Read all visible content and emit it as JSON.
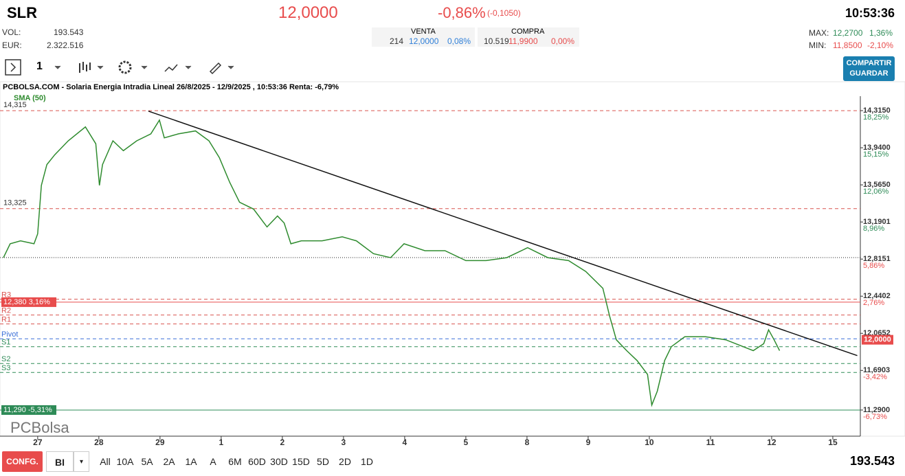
{
  "header": {
    "symbol": "SLR",
    "price": "12,0000",
    "change_pct": "-0,86%",
    "change_abs": "(-0,1050)",
    "time": "10:53:36",
    "vol_label": "VOL:",
    "vol_value": "193.543",
    "eur_label": "EUR:",
    "eur_value": "2.322.516",
    "sell": {
      "title": "VENTA",
      "qty": "214",
      "price": "12,0000",
      "pct": "0,08%"
    },
    "buy": {
      "title": "COMPRA",
      "qty": "10.519",
      "price": "11,9900",
      "pct": "0,00%"
    },
    "max_label": "MAX:",
    "max_value": "12,2700",
    "max_pct": "1,36%",
    "min_label": "MIN:",
    "min_value": "11,8500",
    "min_pct": "-2,10%"
  },
  "toolbar": {
    "interval": "1",
    "share": "COMPARTIR",
    "save": "GUARDAR"
  },
  "chart_data": {
    "type": "line",
    "title": "PCBOLSA.COM - Solaria Energia Intradia Lineal 26/8/2025 - 12/9/2025 , 10:53:36 Renta: -6,79%",
    "watermark": "PCBolsa",
    "xlim": [
      -0.56,
      13.45
    ],
    "xticks": [
      {
        "value": 0,
        "label": "27"
      },
      {
        "value": 1,
        "label": "28"
      },
      {
        "value": 2,
        "label": "29"
      },
      {
        "value": 3,
        "label": "1"
      },
      {
        "value": 4,
        "label": "2"
      },
      {
        "value": 5,
        "label": "3"
      },
      {
        "value": 6,
        "label": "4"
      },
      {
        "value": 7,
        "label": "5"
      },
      {
        "value": 8,
        "label": "8"
      },
      {
        "value": 9,
        "label": "9"
      },
      {
        "value": 10,
        "label": "10"
      },
      {
        "value": 11,
        "label": "11"
      },
      {
        "value": 12,
        "label": "12"
      },
      {
        "value": 13,
        "label": "15"
      }
    ],
    "ylim": [
      11.026,
      14.6
    ],
    "yticks": [
      {
        "value": 14.315,
        "label": "14,3150"
      },
      {
        "value": 13.94,
        "label": "13,9400"
      },
      {
        "value": 13.565,
        "label": "13,5650"
      },
      {
        "value": 13.1901,
        "label": "13,1901"
      },
      {
        "value": 12.8151,
        "label": "12,8151"
      },
      {
        "value": 12.4402,
        "label": "12,4402"
      },
      {
        "value": 12.0652,
        "label": "12,0652"
      },
      {
        "value": 11.6903,
        "label": "11,6903"
      },
      {
        "value": 11.29,
        "label": "11,2900"
      }
    ],
    "ytick_percent": [
      "18,25%",
      "15,15%",
      "12,06%",
      "8,96%",
      "5,86%",
      "2,76%",
      null,
      "-3,42%",
      "-6,73%"
    ],
    "series": [
      {
        "name": "SMA (50)",
        "color": "#2e8b2e",
        "x": [
          -0.56,
          -0.45,
          -0.28,
          -0.06,
          0,
          0.06,
          0.15,
          0.28,
          0.5,
          0.78,
          0.95,
          1.01,
          1.06,
          1.23,
          1.4,
          1.62,
          1.85,
          1.99,
          2.07,
          2.3,
          2.58,
          2.8,
          2.97,
          3.14,
          3.3,
          3.53,
          3.75,
          3.92,
          4.03,
          4.14,
          4.31,
          4.65,
          4.98,
          5.21,
          5.49,
          5.77,
          5.99,
          6.33,
          6.66,
          7.0,
          7.33,
          7.67,
          8.01,
          8.34,
          8.68,
          8.96,
          9.24,
          9.35,
          9.46,
          9.63,
          9.8,
          9.97,
          10.04,
          10.13,
          10.25,
          10.36,
          10.58,
          10.92,
          11.25,
          11.7,
          11.87,
          11.95,
          12.04,
          12.13
        ],
        "values": [
          12.83,
          12.97,
          13.0,
          12.97,
          13.07,
          13.56,
          13.77,
          13.87,
          14.01,
          14.15,
          13.98,
          13.56,
          13.77,
          14.01,
          13.91,
          14.01,
          14.08,
          14.22,
          14.04,
          14.08,
          14.11,
          14.01,
          13.84,
          13.59,
          13.39,
          13.32,
          13.14,
          13.25,
          13.18,
          12.97,
          13.0,
          13.0,
          13.04,
          13.0,
          12.87,
          12.83,
          12.97,
          12.9,
          12.9,
          12.8,
          12.8,
          12.83,
          12.93,
          12.83,
          12.8,
          12.69,
          12.52,
          12.24,
          12.0,
          11.89,
          11.79,
          11.65,
          11.34,
          11.48,
          11.79,
          11.93,
          12.03,
          12.03,
          12.0,
          11.89,
          11.96,
          12.1,
          12.0,
          11.89
        ]
      }
    ],
    "trendline": {
      "x": [
        1.81,
        13.4
      ],
      "values": [
        14.31,
        11.84
      ],
      "color": "#111111"
    },
    "reference_line": 12.83,
    "levels": [
      {
        "label": "R3",
        "value": 12.41,
        "color": "#d9534f"
      },
      {
        "label": "R2",
        "value": 12.25,
        "color": "#d9534f"
      },
      {
        "label": "R1",
        "value": 12.16,
        "color": "#d9534f"
      },
      {
        "label": "Pivot",
        "value": 12.01,
        "color": "#3a6fd8"
      },
      {
        "label": "S1",
        "value": 11.93,
        "color": "#2e8b57"
      },
      {
        "label": "S2",
        "value": 11.76,
        "color": "#2e8b57"
      },
      {
        "label": "S3",
        "value": 11.67,
        "color": "#2e8b57"
      }
    ],
    "markers": [
      {
        "label": "14,315",
        "value": 14.315,
        "color": "#d9534f",
        "box": false
      },
      {
        "label": "13,325",
        "value": 13.325,
        "color": "#d9534f",
        "box": false
      },
      {
        "label": "12,380  3,16%",
        "value": 12.38,
        "color": "#e84c4c",
        "box": true
      },
      {
        "label": "11,290  -5,31%",
        "value": 11.29,
        "color": "#2e8b57",
        "box": true
      }
    ],
    "last": {
      "label": "12,0000",
      "value": 12.0,
      "color": "#e84c4c"
    }
  },
  "footer": {
    "config": "CONFG.",
    "mode": "BI",
    "ranges": [
      "All",
      "10A",
      "5A",
      "2A",
      "1A",
      "A",
      "6M",
      "60D",
      "30D",
      "15D",
      "5D",
      "2D",
      "1D"
    ],
    "volume": "193.543"
  }
}
